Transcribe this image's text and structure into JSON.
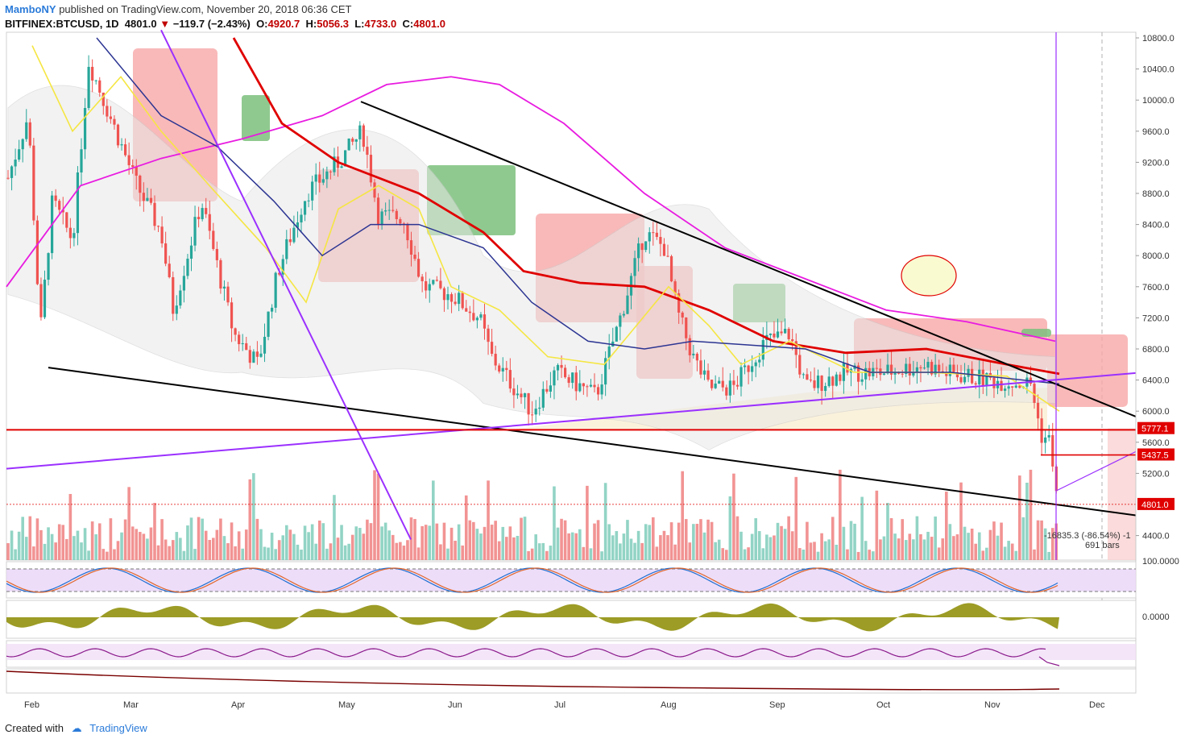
{
  "header": {
    "author": "MamboNY",
    "published": "published on TradingView.com, November 20, 2018 06:36 CET"
  },
  "quote": {
    "symbol": "BITFINEX:BTCUSD, 1D",
    "last": "4801.0",
    "change": "−119.7 (−2.43%)",
    "o_label": "O:",
    "o": "4920.7",
    "h_label": "H:",
    "h": "5056.3",
    "l_label": "L:",
    "l": "4733.0",
    "c_label": "C:",
    "c": "4801.0"
  },
  "footer": {
    "created_with": "Created with",
    "brand": "TradingView"
  },
  "colors": {
    "up": "#7fcdbb",
    "down": "#f08080",
    "ma_red": "#e00000",
    "ma_magenta": "#e81be0",
    "ma_yellow": "#f5e642",
    "ma_navy": "#2c3592",
    "purple_line": "#9b30ff",
    "cloud_red": "#f7a8a8",
    "cloud_green": "#7dbf7d",
    "olive": "#8b8b00"
  },
  "chart_data": {
    "type": "candlestick",
    "symbol": "BITFINEX:BTCUSD",
    "timeframe": "1D",
    "y_ticks": [
      "10800.0",
      "10400.0",
      "10000.0",
      "9600.0",
      "9200.0",
      "8800.0",
      "8400.0",
      "8000.0",
      "7600.0",
      "7200.0",
      "6800.0",
      "6400.0",
      "6000.0",
      "5600.0",
      "5200.0",
      "4400.0"
    ],
    "ylim": [
      4400,
      10800
    ],
    "x_ticks": [
      "Feb",
      "Mar",
      "Apr",
      "May",
      "Jun",
      "Jul",
      "Aug",
      "Sep",
      "Oct",
      "Nov",
      "Dec"
    ],
    "price_labels": [
      {
        "value": "5777.1",
        "color": "#e00000"
      },
      {
        "value": "5437.5",
        "color": "#e00000"
      },
      {
        "value": "4801.0",
        "color": "#e00000"
      }
    ],
    "measure": {
      "text": "-16835.3 (-86.54%) -1",
      "bars": "691 bars"
    },
    "close_approx": [
      {
        "date": "Feb",
        "close": 8900
      },
      {
        "date": "Feb-mid",
        "close": 7800
      },
      {
        "date": "Feb-late",
        "close": 10400
      },
      {
        "date": "Mar",
        "close": 10300
      },
      {
        "date": "Mar-mid",
        "close": 8300
      },
      {
        "date": "Apr",
        "close": 6900
      },
      {
        "date": "Apr-mid",
        "close": 7900
      },
      {
        "date": "May",
        "close": 9200
      },
      {
        "date": "May-mid",
        "close": 8200
      },
      {
        "date": "Jun",
        "close": 7500
      },
      {
        "date": "Jun-mid",
        "close": 6600
      },
      {
        "date": "Jul",
        "close": 6500
      },
      {
        "date": "Jul-late",
        "close": 8200
      },
      {
        "date": "Aug",
        "close": 7600
      },
      {
        "date": "Aug-mid",
        "close": 6300
      },
      {
        "date": "Sep",
        "close": 7000
      },
      {
        "date": "Sep-mid",
        "close": 6500
      },
      {
        "date": "Oct",
        "close": 6600
      },
      {
        "date": "Oct-mid",
        "close": 6500
      },
      {
        "date": "Nov",
        "close": 6400
      },
      {
        "date": "Nov-mid",
        "close": 5600
      },
      {
        "date": "Nov-20",
        "close": 4801
      }
    ],
    "oscillator_label": "100.0000",
    "macd_label": "0.0000"
  }
}
